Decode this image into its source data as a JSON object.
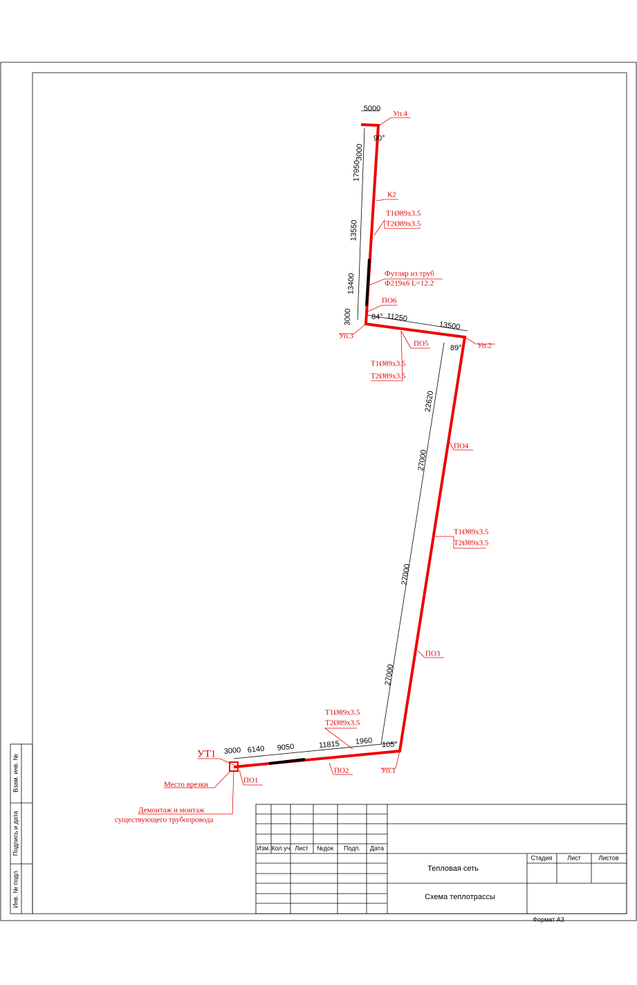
{
  "drawing": {
    "dimensions": [
      "5000",
      "3000",
      "17950",
      "13550",
      "13400",
      "3000",
      "11250",
      "13500",
      "22620",
      "27000",
      "27000",
      "27000",
      "3000",
      "6140",
      "9050",
      "11815",
      "1960"
    ],
    "angles": [
      "90°",
      "84°",
      "89°",
      "105°"
    ],
    "nodes": [
      "Уп.4",
      "Уп.3",
      "Уп.2",
      "Уп.1",
      "УТ1",
      "К2"
    ],
    "fixed_supports": [
      "ПО1",
      "ПО2",
      "ПО3",
      "ПО4",
      "ПО5",
      "ПО6"
    ],
    "pipe_specs": [
      [
        "Т1Ø89х3.5",
        "Т2Ø89х3.5"
      ],
      [
        "Т1Ø89х3.5",
        "Т2Ø89х3.5"
      ],
      [
        "Т1Ø89х3.5",
        "Т2Ø89х3.5"
      ],
      [
        "Т1Ø89х3.5",
        "Т2Ø89х3.5"
      ]
    ],
    "casing": [
      "Футляр из труб",
      "Ф219х6 L=12.2"
    ],
    "notes": [
      "Место врезки",
      "Демонтаж и монтаж",
      "существующего трубопровода"
    ],
    "title_block": {
      "headers": [
        "Изм.",
        "Кол.уч",
        "Лист",
        "№док",
        "Подп.",
        "Дата"
      ],
      "project": "Тепловая сеть",
      "sheet": "Схема теплотрассы",
      "stage_headers": [
        "Стадия",
        "Лист",
        "Листов"
      ],
      "format": "Формат А3"
    },
    "side_stamp": [
      "Взам. инв. №",
      "Подпись и дата",
      "Инв. № подл."
    ]
  }
}
